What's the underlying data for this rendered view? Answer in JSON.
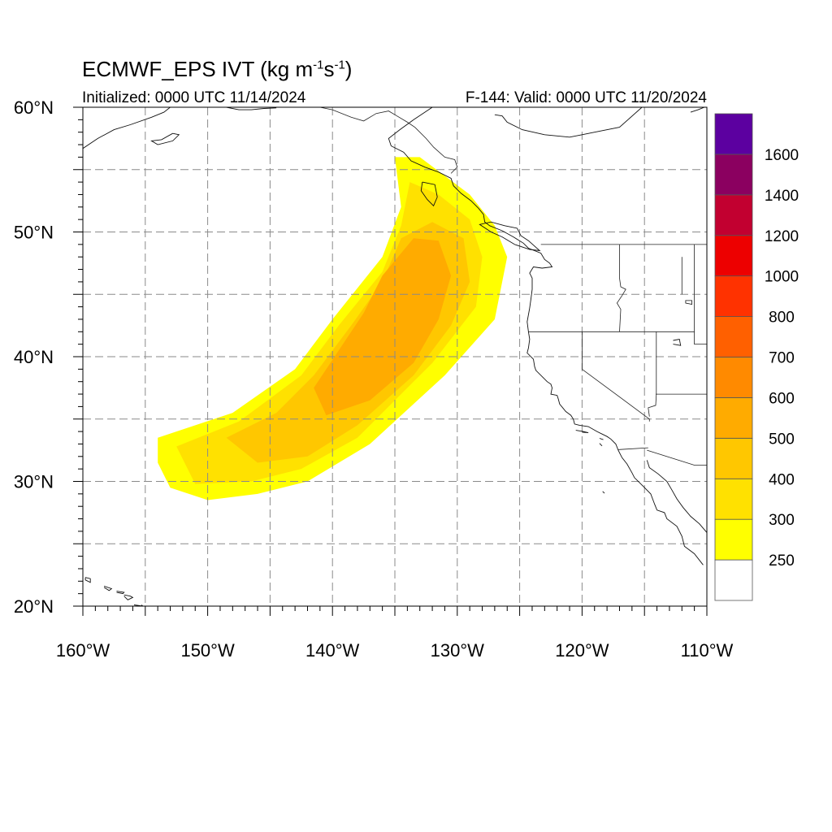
{
  "header": {
    "title_main": "ECMWF_EPS IVT (kg m",
    "title_exp1": "-1",
    "title_mid": "s",
    "title_exp2": "-1",
    "title_end": ")",
    "initialized": "Initialized: 0000 UTC 11/14/2024",
    "valid": "F-144: Valid: 0000 UTC 11/20/2024"
  },
  "map": {
    "lon_range": [
      -160,
      -110
    ],
    "lat_range": [
      20,
      60
    ],
    "lon_ticks": [
      {
        "value": -160,
        "label": "160°W"
      },
      {
        "value": -150,
        "label": "150°W"
      },
      {
        "value": -140,
        "label": "140°W"
      },
      {
        "value": -130,
        "label": "130°W"
      },
      {
        "value": -120,
        "label": "120°W"
      },
      {
        "value": -110,
        "label": "110°W"
      }
    ],
    "lat_ticks": [
      {
        "value": 60,
        "label": "60°N"
      },
      {
        "value": 50,
        "label": "50°N"
      },
      {
        "value": 40,
        "label": "40°N"
      },
      {
        "value": 30,
        "label": "30°N"
      },
      {
        "value": 20,
        "label": "20°N"
      }
    ],
    "grid_step_deg": 5,
    "plume_layers": [
      {
        "level": 250,
        "color": "#ffff00",
        "polygon": [
          [
            -154,
            33.5
          ],
          [
            -148,
            35.5
          ],
          [
            -143,
            39
          ],
          [
            -140,
            43
          ],
          [
            -136,
            48
          ],
          [
            -134.5,
            52
          ],
          [
            -135,
            56
          ],
          [
            -133,
            56
          ],
          [
            -129,
            53
          ],
          [
            -127,
            50.5
          ],
          [
            -126,
            48
          ],
          [
            -127,
            43
          ],
          [
            -131,
            38.5
          ],
          [
            -137,
            33
          ],
          [
            -142,
            30
          ],
          [
            -146,
            29
          ],
          [
            -150,
            28.5
          ],
          [
            -153,
            29.5
          ],
          [
            -154,
            31.5
          ]
        ]
      },
      {
        "level": 300,
        "color": "#ffe100",
        "polygon": [
          [
            -152.5,
            32.8
          ],
          [
            -147.5,
            34.8
          ],
          [
            -142.5,
            38.5
          ],
          [
            -139.5,
            42.5
          ],
          [
            -136,
            46.8
          ],
          [
            -134.5,
            50.5
          ],
          [
            -133.8,
            54
          ],
          [
            -131.5,
            53
          ],
          [
            -129,
            51
          ],
          [
            -128,
            48
          ],
          [
            -128.5,
            44
          ],
          [
            -132,
            39.5
          ],
          [
            -138,
            33.5
          ],
          [
            -142.5,
            31
          ],
          [
            -146.5,
            30
          ],
          [
            -151,
            29.8
          ]
        ]
      },
      {
        "level": 400,
        "color": "#ffc700",
        "polygon": [
          [
            -148.5,
            33.5
          ],
          [
            -144.5,
            35.5
          ],
          [
            -141.5,
            38.5
          ],
          [
            -138.5,
            42.5
          ],
          [
            -136,
            46
          ],
          [
            -134.5,
            49.5
          ],
          [
            -132,
            50.8
          ],
          [
            -129.5,
            49.5
          ],
          [
            -129,
            46
          ],
          [
            -130.5,
            42.5
          ],
          [
            -133.5,
            38.5
          ],
          [
            -138,
            34.5
          ],
          [
            -142,
            32
          ],
          [
            -146,
            31.5
          ]
        ]
      },
      {
        "level": 500,
        "color": "#ffab00",
        "polygon": [
          [
            -141.5,
            37.5
          ],
          [
            -139.5,
            40.5
          ],
          [
            -137.5,
            43.5
          ],
          [
            -136,
            46.5
          ],
          [
            -133.5,
            49.5
          ],
          [
            -131.5,
            49.3
          ],
          [
            -130.5,
            46.5
          ],
          [
            -131.5,
            43
          ],
          [
            -133.5,
            39.5
          ],
          [
            -137,
            36.5
          ],
          [
            -140.5,
            35.3
          ]
        ]
      }
    ],
    "coastlines": [
      [
        [
          -115.2,
          60
        ],
        [
          -117,
          58.4
        ],
        [
          -119,
          58
        ],
        [
          -120,
          57.8
        ],
        [
          -121,
          57.6
        ],
        [
          -123,
          57.8
        ],
        [
          -124.8,
          58.2
        ],
        [
          -126,
          58.8
        ],
        [
          -126.4,
          59.3
        ],
        [
          -127,
          59.4
        ]
      ],
      [
        [
          -132,
          60
        ],
        [
          -133.5,
          59
        ],
        [
          -134.6,
          58.2
        ],
        [
          -135.5,
          57.5
        ],
        [
          -135.3,
          56.9
        ],
        [
          -134.3,
          56.4
        ],
        [
          -133.7,
          55.7
        ],
        [
          -132.6,
          55.2
        ],
        [
          -131.5,
          54.8
        ],
        [
          -130.5,
          54.3
        ],
        [
          -130.3,
          53.7
        ],
        [
          -129.7,
          53.1
        ],
        [
          -128.9,
          52.5
        ],
        [
          -128.3,
          51.9
        ],
        [
          -127.9,
          51.4
        ],
        [
          -127.8,
          50.8
        ],
        [
          -127.4,
          50.5
        ],
        [
          -126.4,
          50.1
        ],
        [
          -125.5,
          49.6
        ],
        [
          -124.7,
          49.1
        ],
        [
          -124.3,
          48.7
        ],
        [
          -123.3,
          48.3
        ],
        [
          -123,
          47.8
        ],
        [
          -122.6,
          47.5
        ],
        [
          -122.4,
          47.2
        ],
        [
          -123.2,
          47.1
        ],
        [
          -123.9,
          47.2
        ],
        [
          -124.2,
          46.7
        ],
        [
          -124,
          46.3
        ],
        [
          -124,
          45.4
        ],
        [
          -124.1,
          44.6
        ],
        [
          -124.2,
          43.9
        ],
        [
          -124.4,
          42.8
        ],
        [
          -124.3,
          42
        ],
        [
          -124.2,
          41.4
        ],
        [
          -124.3,
          40.7
        ],
        [
          -124.4,
          40.3
        ],
        [
          -123.9,
          39.8
        ],
        [
          -123.8,
          39.2
        ],
        [
          -123.7,
          38.9
        ],
        [
          -123.1,
          38.3
        ],
        [
          -122.8,
          38
        ],
        [
          -122.5,
          37.8
        ],
        [
          -122.4,
          37.5
        ],
        [
          -122.5,
          37
        ],
        [
          -122,
          36.9
        ],
        [
          -121.9,
          36.6
        ],
        [
          -121.8,
          36.2
        ],
        [
          -121.3,
          35.6
        ],
        [
          -120.9,
          35.3
        ],
        [
          -120.7,
          35
        ],
        [
          -120.6,
          34.6
        ],
        [
          -120.2,
          34.5
        ],
        [
          -119.5,
          34.4
        ],
        [
          -118.8,
          34
        ],
        [
          -118.4,
          33.8
        ],
        [
          -118,
          33.6
        ],
        [
          -117.7,
          33.4
        ],
        [
          -117.3,
          33
        ],
        [
          -117.1,
          32.5
        ],
        [
          -116.8,
          31.9
        ],
        [
          -116.4,
          31.4
        ],
        [
          -116,
          30.7
        ],
        [
          -115.8,
          30.3
        ],
        [
          -115.1,
          29.6
        ],
        [
          -114.5,
          29
        ],
        [
          -114.2,
          28.2
        ],
        [
          -114,
          27.7
        ],
        [
          -113.4,
          27.5
        ],
        [
          -113.2,
          27
        ],
        [
          -112.4,
          26.4
        ],
        [
          -112,
          25.6
        ],
        [
          -111.8,
          24.8
        ],
        [
          -111,
          24.2
        ],
        [
          -110.3,
          23.3
        ]
      ],
      [
        [
          -114.8,
          31.7
        ],
        [
          -114.6,
          31.1
        ],
        [
          -113.9,
          30.6
        ],
        [
          -113.2,
          30
        ],
        [
          -112.8,
          29.3
        ],
        [
          -112.4,
          28.6
        ],
        [
          -111.9,
          27.9
        ],
        [
          -111.3,
          27.2
        ],
        [
          -110.6,
          26.6
        ],
        [
          -110,
          25.9
        ]
      ],
      [
        [
          -160,
          56.7
        ],
        [
          -158.8,
          57.5
        ],
        [
          -157.5,
          58.2
        ],
        [
          -156.2,
          58.6
        ],
        [
          -154.5,
          59.2
        ],
        [
          -153.5,
          59.6
        ],
        [
          -153,
          60
        ]
      ],
      [
        [
          -152.8,
          57.9
        ],
        [
          -153.7,
          57.4
        ],
        [
          -154.5,
          57.3
        ],
        [
          -154,
          57
        ],
        [
          -152.8,
          57.3
        ],
        [
          -152.3,
          57.8
        ],
        [
          -152.8,
          57.9
        ]
      ],
      [
        [
          -148.5,
          60
        ],
        [
          -147.5,
          59.8
        ],
        [
          -146.5,
          59.8
        ],
        [
          -145.5,
          59.9
        ],
        [
          -144.5,
          59.95
        ]
      ],
      [
        [
          -111.3,
          59.6
        ],
        [
          -110.7,
          59.8
        ],
        [
          -110.2,
          60
        ]
      ],
      [
        [
          -159.8,
          22.3
        ],
        [
          -159.4,
          22.2
        ],
        [
          -159.4,
          21.9
        ],
        [
          -159.8,
          22.1
        ],
        [
          -159.8,
          22.3
        ]
      ],
      [
        [
          -158.3,
          21.6
        ],
        [
          -157.7,
          21.4
        ],
        [
          -157.9,
          21.25
        ],
        [
          -158.3,
          21.5
        ]
      ],
      [
        [
          -157.3,
          21.2
        ],
        [
          -156.7,
          21.1
        ],
        [
          -156.8,
          21
        ],
        [
          -157.3,
          21.1
        ]
      ],
      [
        [
          -156.7,
          20.9
        ],
        [
          -156.2,
          20.8
        ],
        [
          -156,
          20.7
        ],
        [
          -156.4,
          20.5
        ],
        [
          -156.7,
          20.8
        ]
      ],
      [
        [
          -155.9,
          20.1
        ],
        [
          -155.2,
          20
        ],
        [
          -155.3,
          20.1
        ]
      ],
      [
        [
          -132.8,
          54
        ],
        [
          -131.8,
          53.8
        ],
        [
          -131.6,
          52.8
        ],
        [
          -131.9,
          52.1
        ],
        [
          -132.4,
          52.6
        ],
        [
          -132.9,
          53.3
        ],
        [
          -132.8,
          54
        ]
      ],
      [
        [
          -125.2,
          50.3
        ],
        [
          -124.9,
          49.7
        ],
        [
          -124.3,
          49.3
        ],
        [
          -123.4,
          48.5
        ],
        [
          -124.2,
          48.6
        ],
        [
          -125.4,
          49
        ],
        [
          -126.4,
          49.6
        ],
        [
          -127.3,
          50
        ],
        [
          -128.2,
          50.6
        ],
        [
          -127.3,
          50.8
        ],
        [
          -126.2,
          50.5
        ],
        [
          -125.2,
          50.3
        ]
      ],
      [
        [
          -120.5,
          34.1
        ],
        [
          -119.9,
          34
        ],
        [
          -119.5,
          33.9
        ],
        [
          -120,
          33.95
        ]
      ],
      [
        [
          -118.6,
          33.45
        ],
        [
          -118.3,
          33.35
        ]
      ],
      [
        [
          -118.6,
          33.05
        ],
        [
          -118.4,
          32.85
        ]
      ],
      [
        [
          -118.35,
          29.2
        ],
        [
          -118.2,
          29.05
        ]
      ],
      [
        [
          -112.7,
          41.3
        ],
        [
          -112.2,
          41.4
        ],
        [
          -112.1,
          40.9
        ],
        [
          -112.7,
          41
        ]
      ]
    ],
    "borders": [
      [
        [
          -141,
          60
        ],
        [
          -140,
          59.8
        ],
        [
          -138.5,
          59.2
        ],
        [
          -137.5,
          58.9
        ],
        [
          -136.5,
          59.5
        ],
        [
          -135.5,
          59.7
        ],
        [
          -135,
          59.4
        ],
        [
          -134,
          58.8
        ],
        [
          -133.4,
          58.4
        ],
        [
          -132.5,
          57.5
        ],
        [
          -131.9,
          56.8
        ],
        [
          -131,
          56
        ],
        [
          -130.2,
          55.8
        ],
        [
          -130,
          55.2
        ],
        [
          -130.5,
          54.7
        ]
      ],
      [
        [
          -123.3,
          49
        ],
        [
          -95,
          49
        ]
      ],
      [
        [
          -124.3,
          42
        ],
        [
          -120,
          42
        ],
        [
          -117,
          42
        ],
        [
          -111,
          42
        ]
      ],
      [
        [
          -117,
          49
        ],
        [
          -117,
          46.3
        ],
        [
          -116.9,
          45.6
        ],
        [
          -116.5,
          45.4
        ],
        [
          -116.8,
          44.9
        ],
        [
          -117.2,
          44.3
        ],
        [
          -116.9,
          43.8
        ],
        [
          -117,
          42
        ]
      ],
      [
        [
          -120,
          42
        ],
        [
          -120,
          39
        ],
        [
          -114.6,
          35
        ],
        [
          -114.6,
          34.8
        ]
      ],
      [
        [
          -114.05,
          42
        ],
        [
          -114.05,
          37
        ],
        [
          -114.1,
          36.1
        ],
        [
          -114.7,
          35.9
        ],
        [
          -114.6,
          35.2
        ]
      ],
      [
        [
          -114.7,
          32.7
        ],
        [
          -117.1,
          32.55
        ]
      ],
      [
        [
          -114.8,
          32.5
        ],
        [
          -111,
          31.3
        ],
        [
          -108,
          31.3
        ]
      ],
      [
        [
          -111,
          45
        ],
        [
          -111,
          41
        ],
        [
          -108,
          41
        ]
      ],
      [
        [
          -114.1,
          37
        ],
        [
          -108,
          37
        ]
      ],
      [
        [
          -111,
          49
        ],
        [
          -111,
          45
        ]
      ],
      [
        [
          -112,
          48
        ],
        [
          -112,
          45
        ]
      ]
    ],
    "lakes": [
      [
        [
          -111.7,
          44.5
        ],
        [
          -111.2,
          44.5
        ],
        [
          -111.2,
          44.2
        ],
        [
          -111.7,
          44.3
        ],
        [
          -111.7,
          44.5
        ]
      ]
    ]
  },
  "colorbar": {
    "colors": [
      "#ffff00",
      "#ffe100",
      "#ffc700",
      "#ffab00",
      "#ff8a00",
      "#ff6000",
      "#ff3200",
      "#ed0000",
      "#c20030",
      "#8b0060",
      "#5c00a0"
    ],
    "labels": [
      "250",
      "300",
      "400",
      "500",
      "600",
      "700",
      "800",
      "1000",
      "1200",
      "1400",
      "1600"
    ]
  }
}
